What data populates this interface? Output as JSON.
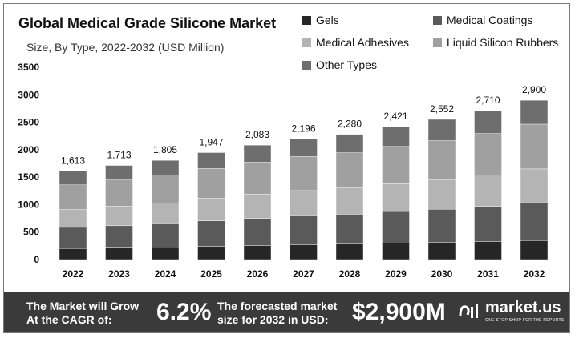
{
  "chart_data": {
    "type": "bar",
    "stacked": true,
    "title": "Global Medical Grade Silicone Market",
    "subtitle": "Size, By Type, 2022-2032 (USD Million)",
    "categories": [
      "2022",
      "2023",
      "2024",
      "2025",
      "2026",
      "2027",
      "2028",
      "2029",
      "2030",
      "2031",
      "2032"
    ],
    "totals": [
      1613,
      1713,
      1805,
      1947,
      2083,
      2196,
      2280,
      2421,
      2552,
      2710,
      2900
    ],
    "total_labels": [
      "1,613",
      "1,713",
      "1,805",
      "1,947",
      "2,083",
      "2,196",
      "2,280",
      "2,421",
      "2,552",
      "2,710",
      "2,900"
    ],
    "series": [
      {
        "name": "Gels",
        "color": "#262626",
        "values": [
          200,
          210,
          220,
          240,
          255,
          270,
          285,
          300,
          310,
          325,
          345
        ]
      },
      {
        "name": "Medical Coatings",
        "color": "#5a5a5a",
        "values": [
          385,
          405,
          430,
          465,
          495,
          525,
          540,
          575,
          605,
          640,
          690
        ]
      },
      {
        "name": "Medical Adhesives",
        "color": "#b4b4b4",
        "values": [
          325,
          355,
          380,
          410,
          440,
          460,
          480,
          505,
          535,
          570,
          615
        ]
      },
      {
        "name": "Liquid Silicon Rubbers",
        "color": "#a0a0a0",
        "values": [
          450,
          480,
          505,
          545,
          585,
          620,
          640,
          680,
          715,
          760,
          815
        ]
      },
      {
        "name": "Other Types",
        "color": "#6e6e6e",
        "values": [
          253,
          263,
          270,
          287,
          308,
          321,
          335,
          361,
          387,
          415,
          435
        ]
      }
    ],
    "yticks": [
      0,
      500,
      1000,
      1500,
      2000,
      2500,
      3000,
      3500
    ],
    "ylim": [
      0,
      3500
    ],
    "legend": "top-right",
    "grid": false
  },
  "footer": {
    "text1_line1": "The Market will Grow",
    "text1_line2": "At the CAGR of:",
    "cagr": "6.2%",
    "text2_line1": "The forecasted market",
    "text2_line2": "size for 2032 in USD:",
    "value": "$2,900M",
    "brand": "market.us",
    "brand_tag": "ONE STOP SHOP FOR THE REPORTS"
  }
}
